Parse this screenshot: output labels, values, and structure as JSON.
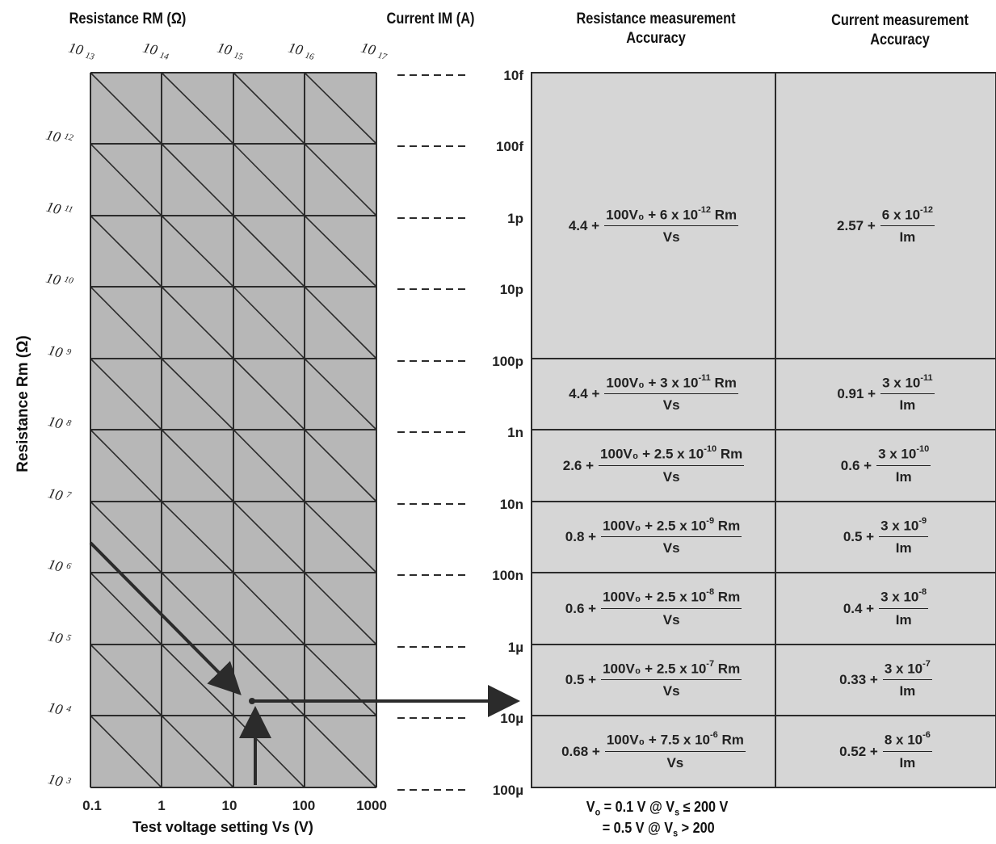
{
  "headers": {
    "resistance_rm": "Resistance RM (Ω)",
    "current_im": "Current IM (A)",
    "res_accuracy_l1": "Resistance measurement",
    "res_accuracy_l2": "Accuracy",
    "cur_accuracy_l1": "Current measurement",
    "cur_accuracy_l2": "Accuracy"
  },
  "y_axis_label": "Resistance Rm (Ω)",
  "x_axis_label": "Test voltage setting Vs (V)",
  "x_ticks": [
    "0.1",
    "1",
    "10",
    "100",
    "1000"
  ],
  "top_ticks": [
    {
      "base": "10",
      "exp": "13"
    },
    {
      "base": "10",
      "exp": "14"
    },
    {
      "base": "10",
      "exp": "15"
    },
    {
      "base": "10",
      "exp": "16"
    },
    {
      "base": "10",
      "exp": "17"
    }
  ],
  "left_ticks": [
    {
      "base": "10",
      "exp": "12"
    },
    {
      "base": "10",
      "exp": "11"
    },
    {
      "base": "10",
      "exp": "10"
    },
    {
      "base": "10",
      "exp": "9"
    },
    {
      "base": "10",
      "exp": "8"
    },
    {
      "base": "10",
      "exp": "7"
    },
    {
      "base": "10",
      "exp": "6"
    },
    {
      "base": "10",
      "exp": "5"
    },
    {
      "base": "10",
      "exp": "4"
    },
    {
      "base": "10",
      "exp": "3"
    }
  ],
  "current_ticks": [
    "10f",
    "100f",
    "1p",
    "10p",
    "100p",
    "1n",
    "10n",
    "100n",
    "1µ",
    "10µ",
    "100µ"
  ],
  "rows": [
    {
      "r_pre": "4.4 +",
      "r_num": "100V₀ + 6 x 10",
      "r_exp": "-12",
      "r_tail": " Rm",
      "r_den": "Vs",
      "c_pre": "2.57 +",
      "c_num": "6 x 10",
      "c_exp": "-12",
      "c_den": "Im"
    },
    {
      "r_pre": "4.4 +",
      "r_num": "100V₀ + 3 x 10",
      "r_exp": "-11",
      "r_tail": " Rm",
      "r_den": "Vs",
      "c_pre": "0.91 +",
      "c_num": "3 x 10",
      "c_exp": "-11",
      "c_den": "Im"
    },
    {
      "r_pre": "2.6 +",
      "r_num": "100V₀ + 2.5 x 10",
      "r_exp": "-10",
      "r_tail": " Rm",
      "r_den": "Vs",
      "c_pre": "0.6 +",
      "c_num": "3 x 10",
      "c_exp": "-10",
      "c_den": "Im"
    },
    {
      "r_pre": "0.8 +",
      "r_num": "100V₀ + 2.5 x 10",
      "r_exp": "-9",
      "r_tail": " Rm",
      "r_den": "Vs",
      "c_pre": "0.5 +",
      "c_num": "3 x 10",
      "c_exp": "-9",
      "c_den": "Im"
    },
    {
      "r_pre": "0.6 +",
      "r_num": "100V₀ + 2.5 x 10",
      "r_exp": "-8",
      "r_tail": " Rm",
      "r_den": "Vs",
      "c_pre": "0.4 +",
      "c_num": "3 x 10",
      "c_exp": "-8",
      "c_den": "Im"
    },
    {
      "r_pre": "0.5 +",
      "r_num": "100V₀ + 2.5 x 10",
      "r_exp": "-7",
      "r_tail": " Rm",
      "r_den": "Vs",
      "c_pre": "0.33 +",
      "c_num": "3 x 10",
      "c_exp": "-7",
      "c_den": "Im"
    },
    {
      "r_pre": "0.68 +",
      "r_num": "100V₀ + 7.5 x 10",
      "r_exp": "-6",
      "r_tail": " Rm",
      "r_den": "Vs",
      "c_pre": "0.52 +",
      "c_num": "8 x 10",
      "c_exp": "-6",
      "c_den": "Im"
    }
  ],
  "footnote": {
    "line1_a": "V",
    "line1_sub": "o",
    "line1_b": " = 0.1 V @ V",
    "line1_sub2": "s",
    "line1_c": " ≤ 200 V",
    "line2_a": "= 0.5 V @ V",
    "line2_sub": "s",
    "line2_b": " > 200"
  },
  "colors": {
    "chart_bg": "#b7b7b7",
    "table_bg": "#d6d6d6",
    "line": "#2b2b2b"
  }
}
